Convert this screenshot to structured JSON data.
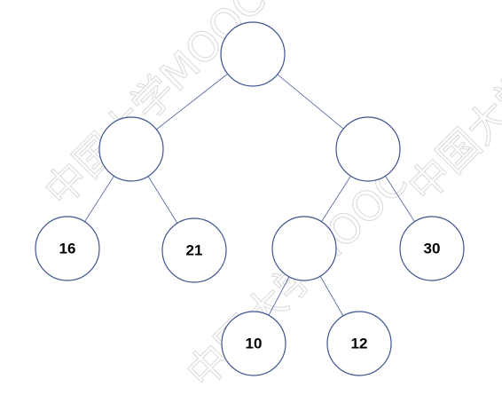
{
  "watermark": {
    "text": "中国大学MOOC",
    "color": "#d9d9d9"
  },
  "tree": {
    "edge_color": "#4a5f9c",
    "node_border_color": "#3f558f",
    "nodes": [
      {
        "id": "root",
        "label": ""
      },
      {
        "id": "left",
        "label": ""
      },
      {
        "id": "right",
        "label": ""
      },
      {
        "id": "left-left",
        "label": "16"
      },
      {
        "id": "left-right",
        "label": "21"
      },
      {
        "id": "right-left",
        "label": ""
      },
      {
        "id": "right-right",
        "label": "30"
      },
      {
        "id": "right-left-left",
        "label": "10"
      },
      {
        "id": "right-left-right",
        "label": "12"
      }
    ]
  }
}
